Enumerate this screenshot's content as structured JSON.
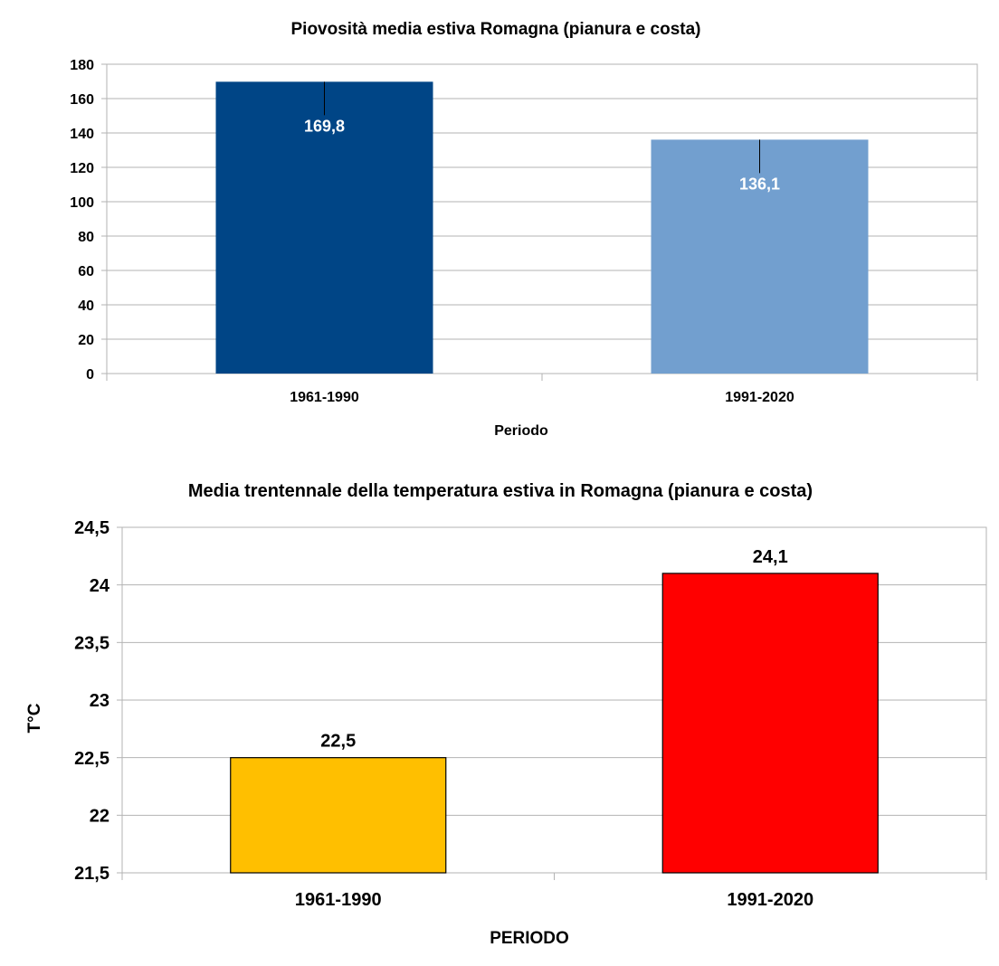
{
  "chart_data": [
    {
      "type": "bar",
      "title": "Piovosità media estiva Romagna (pianura e costa)",
      "xlabel": "Periodo",
      "ylabel": "",
      "categories": [
        "1961-1990",
        "1991-2020"
      ],
      "values": [
        169.8,
        136.1
      ],
      "data_labels": [
        "169,8",
        "136,1"
      ],
      "bar_colors": [
        "#004586",
        "#729fcf"
      ],
      "data_label_color": "#ffffff",
      "ylim": [
        0,
        180
      ],
      "y_ticks": [
        0,
        20,
        40,
        60,
        80,
        100,
        120,
        140,
        160,
        180
      ],
      "y_tick_labels": [
        "0",
        "20",
        "40",
        "60",
        "80",
        "100",
        "120",
        "140",
        "160",
        "180"
      ],
      "grid": true,
      "legend": "none"
    },
    {
      "type": "bar",
      "title": "Media trentennale della temperatura estiva in Romagna (pianura e costa)",
      "xlabel": "PERIODO",
      "ylabel": "T°C",
      "categories": [
        "1961-1990",
        "1991-2020"
      ],
      "values": [
        22.5,
        24.1
      ],
      "data_labels": [
        "22,5",
        "24,1"
      ],
      "bar_colors": [
        "#ffbf00",
        "#ff0000"
      ],
      "data_label_color": "#000000",
      "ylim": [
        21.5,
        24.5
      ],
      "y_ticks": [
        21.5,
        22,
        22.5,
        23,
        23.5,
        24,
        24.5
      ],
      "y_tick_labels": [
        "21,5",
        "22",
        "22,5",
        "23",
        "23,5",
        "24",
        "24,5"
      ],
      "grid": true,
      "legend": "none"
    }
  ]
}
